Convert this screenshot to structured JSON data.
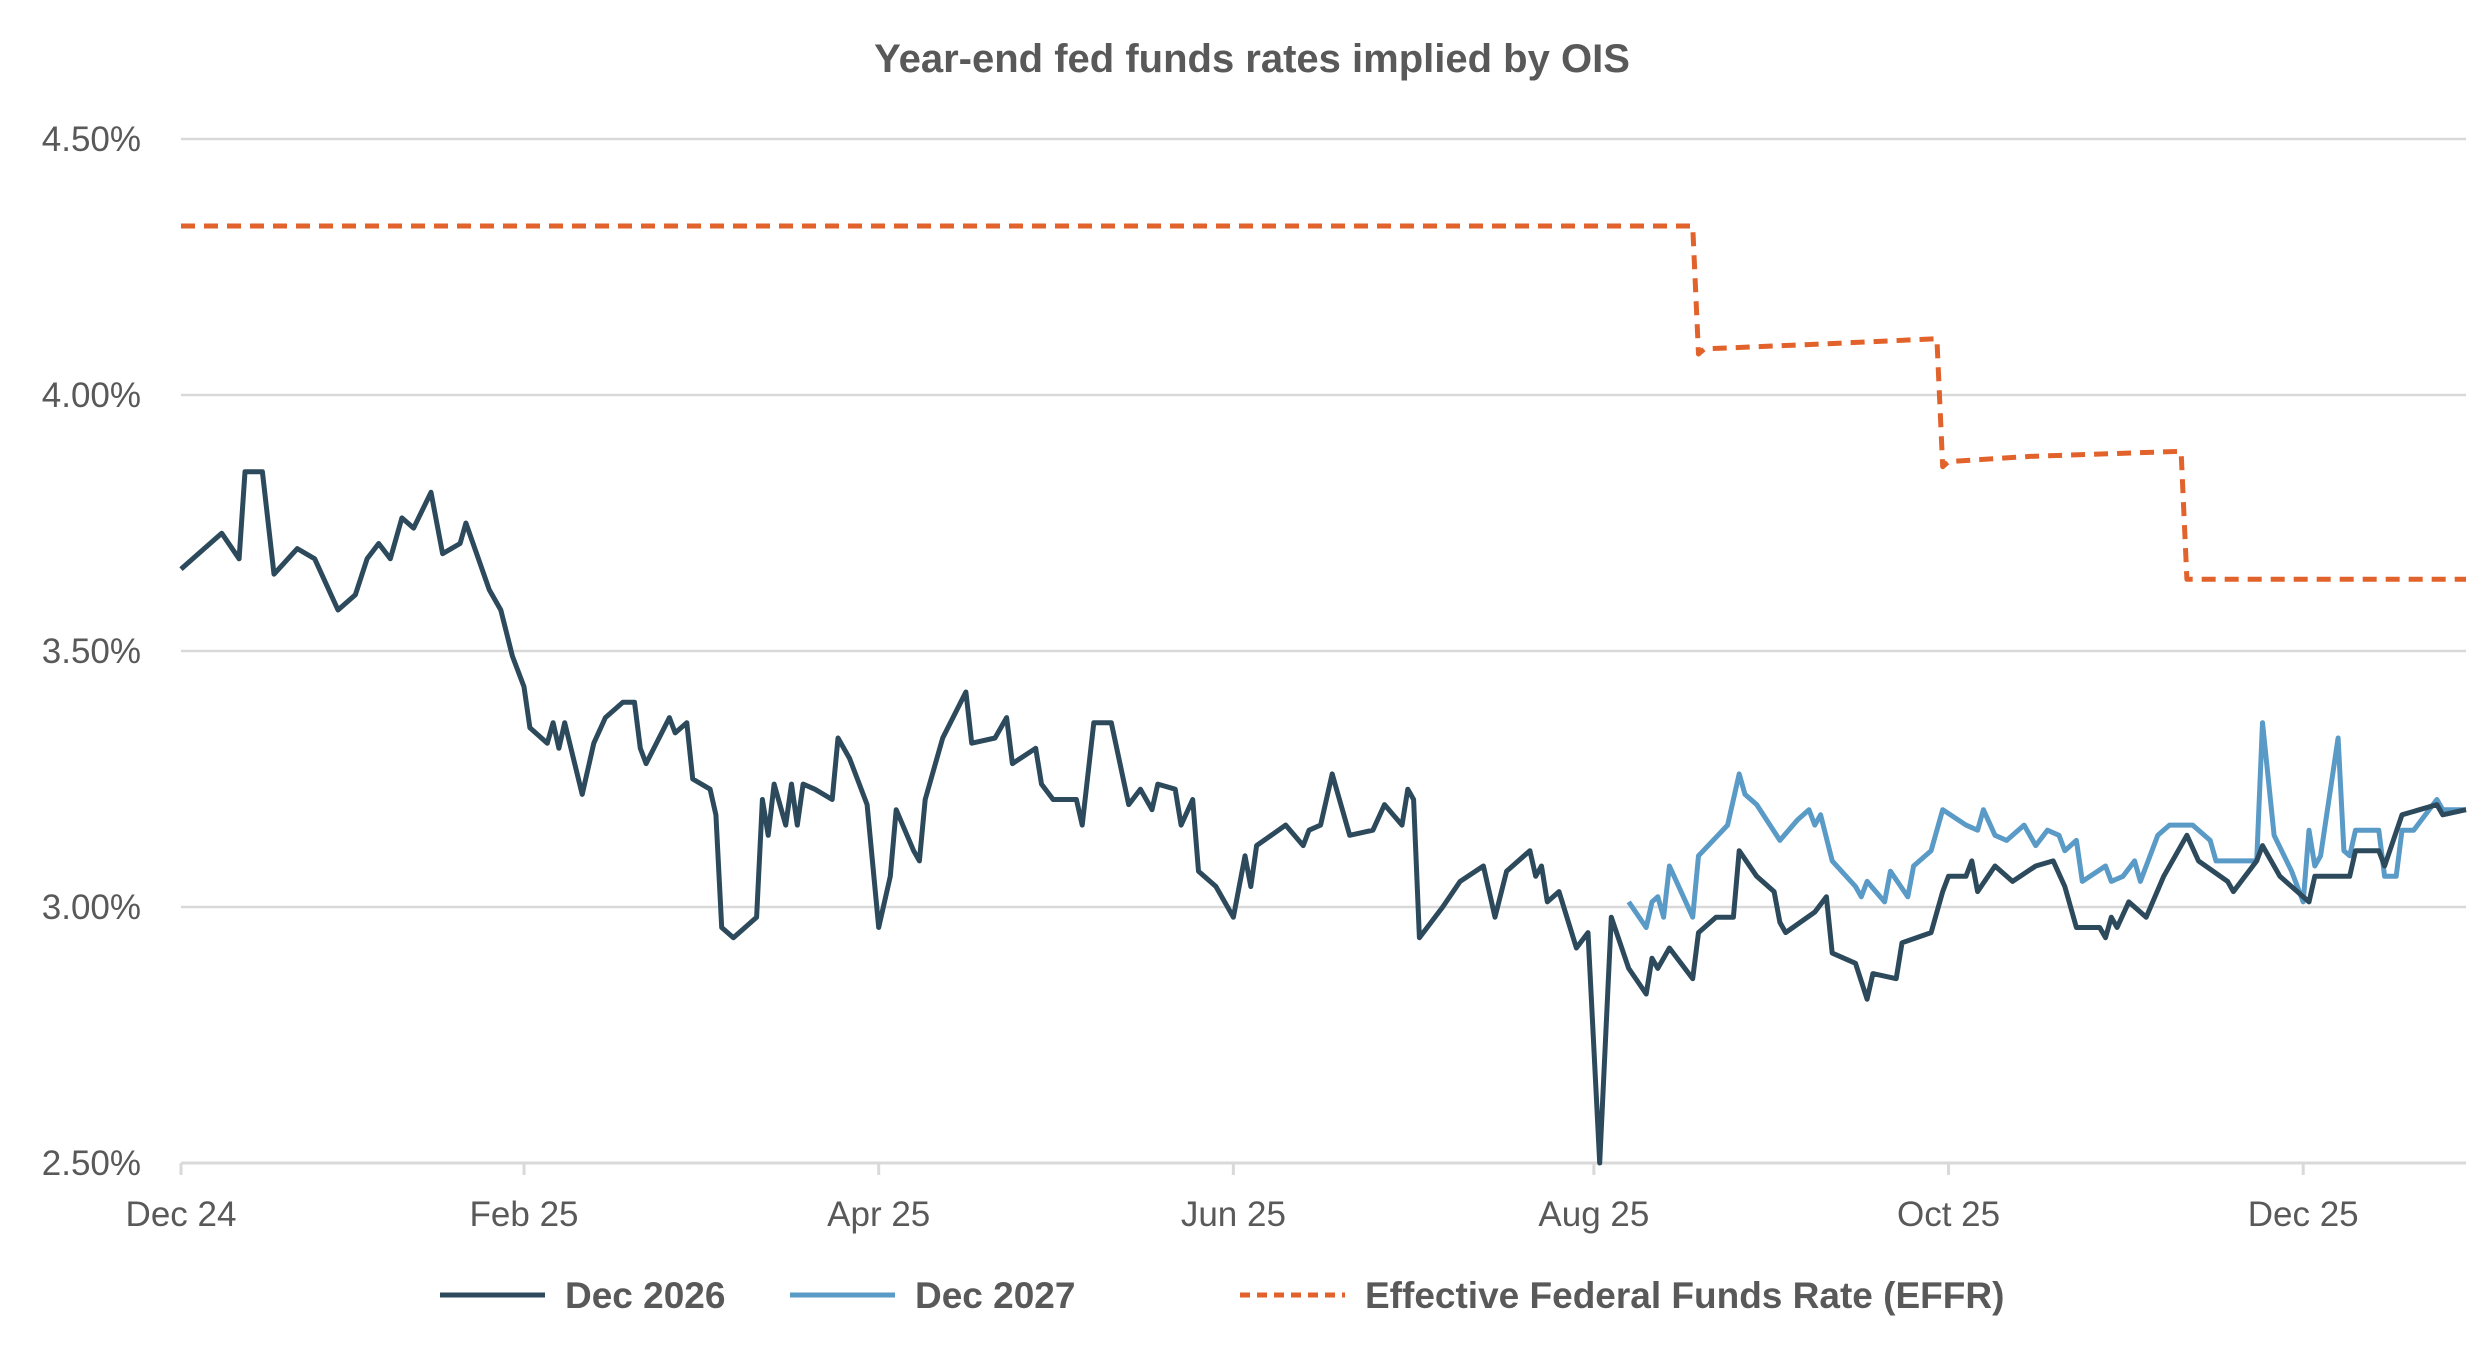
{
  "chart_data": {
    "type": "line",
    "title": "Year-end fed funds rates implied by OIS",
    "xlabel": "",
    "ylabel": "",
    "ylim": [
      2.5,
      4.5
    ],
    "y_ticks": [
      "2.50%",
      "3.00%",
      "3.50%",
      "4.00%",
      "4.50%"
    ],
    "y_tick_values": [
      2.5,
      3.0,
      3.5,
      4.0,
      4.5
    ],
    "x_ticks": [
      "Dec 24",
      "Feb 25",
      "Apr 25",
      "Jun 25",
      "Aug 25",
      "Oct 25",
      "Dec 25"
    ],
    "x_tick_dates": [
      "2024-12-31",
      "2025-02-28",
      "2025-04-30",
      "2025-06-30",
      "2025-08-31",
      "2025-10-31",
      "2025-12-31"
    ],
    "xlim": [
      "2024-12-31",
      "2026-01-28"
    ],
    "grid": "horizontal",
    "legend_position": "bottom",
    "series": [
      {
        "name": "Dec 2026",
        "color": "#2c4a5c",
        "style": "solid",
        "points": [
          [
            "2024-12-31",
            3.66
          ],
          [
            "2025-01-03",
            3.69
          ],
          [
            "2025-01-07",
            3.73
          ],
          [
            "2025-01-10",
            3.68
          ],
          [
            "2025-01-11",
            3.85
          ],
          [
            "2025-01-14",
            3.85
          ],
          [
            "2025-01-16",
            3.65
          ],
          [
            "2025-01-20",
            3.7
          ],
          [
            "2025-01-23",
            3.68
          ],
          [
            "2025-01-27",
            3.58
          ],
          [
            "2025-01-30",
            3.61
          ],
          [
            "2025-02-01",
            3.68
          ],
          [
            "2025-02-03",
            3.71
          ],
          [
            "2025-02-05",
            3.68
          ],
          [
            "2025-02-07",
            3.76
          ],
          [
            "2025-02-09",
            3.74
          ],
          [
            "2025-02-12",
            3.81
          ],
          [
            "2025-02-14",
            3.69
          ],
          [
            "2025-02-17",
            3.71
          ],
          [
            "2025-02-18",
            3.75
          ],
          [
            "2025-02-22",
            3.62
          ],
          [
            "2025-02-24",
            3.58
          ],
          [
            "2025-02-26",
            3.49
          ],
          [
            "2025-02-28",
            3.43
          ],
          [
            "2025-03-01",
            3.35
          ],
          [
            "2025-03-04",
            3.32
          ],
          [
            "2025-03-05",
            3.36
          ],
          [
            "2025-03-06",
            3.31
          ],
          [
            "2025-03-07",
            3.36
          ],
          [
            "2025-03-10",
            3.22
          ],
          [
            "2025-03-12",
            3.32
          ],
          [
            "2025-03-14",
            3.37
          ],
          [
            "2025-03-17",
            3.4
          ],
          [
            "2025-03-19",
            3.4
          ],
          [
            "2025-03-20",
            3.31
          ],
          [
            "2025-03-21",
            3.28
          ],
          [
            "2025-03-25",
            3.37
          ],
          [
            "2025-03-26",
            3.34
          ],
          [
            "2025-03-28",
            3.36
          ],
          [
            "2025-03-29",
            3.25
          ],
          [
            "2025-04-01",
            3.23
          ],
          [
            "2025-04-02",
            3.18
          ],
          [
            "2025-04-03",
            2.96
          ],
          [
            "2025-04-05",
            2.94
          ],
          [
            "2025-04-09",
            2.98
          ],
          [
            "2025-04-10",
            3.21
          ],
          [
            "2025-04-11",
            3.14
          ],
          [
            "2025-04-12",
            3.24
          ],
          [
            "2025-04-14",
            3.16
          ],
          [
            "2025-04-15",
            3.24
          ],
          [
            "2025-04-16",
            3.16
          ],
          [
            "2025-04-17",
            3.24
          ],
          [
            "2025-04-19",
            3.23
          ],
          [
            "2025-04-22",
            3.21
          ],
          [
            "2025-04-23",
            3.33
          ],
          [
            "2025-04-25",
            3.29
          ],
          [
            "2025-04-28",
            3.2
          ],
          [
            "2025-04-29",
            3.08
          ],
          [
            "2025-04-30",
            2.96
          ],
          [
            "2025-05-02",
            3.06
          ],
          [
            "2025-05-03",
            3.19
          ],
          [
            "2025-05-06",
            3.11
          ],
          [
            "2025-05-07",
            3.09
          ],
          [
            "2025-05-08",
            3.21
          ],
          [
            "2025-05-11",
            3.33
          ],
          [
            "2025-05-15",
            3.42
          ],
          [
            "2025-05-16",
            3.32
          ],
          [
            "2025-05-20",
            3.33
          ],
          [
            "2025-05-22",
            3.37
          ],
          [
            "2025-05-23",
            3.28
          ],
          [
            "2025-05-27",
            3.31
          ],
          [
            "2025-05-28",
            3.24
          ],
          [
            "2025-05-30",
            3.21
          ],
          [
            "2025-06-03",
            3.21
          ],
          [
            "2025-06-04",
            3.16
          ],
          [
            "2025-06-06",
            3.36
          ],
          [
            "2025-06-09",
            3.36
          ],
          [
            "2025-06-12",
            3.2
          ],
          [
            "2025-06-14",
            3.23
          ],
          [
            "2025-06-16",
            3.19
          ],
          [
            "2025-06-17",
            3.24
          ],
          [
            "2025-06-20",
            3.23
          ],
          [
            "2025-06-21",
            3.16
          ],
          [
            "2025-06-23",
            3.21
          ],
          [
            "2025-06-24",
            3.07
          ],
          [
            "2025-06-27",
            3.04
          ],
          [
            "2025-06-30",
            2.98
          ],
          [
            "2025-07-02",
            3.1
          ],
          [
            "2025-07-03",
            3.04
          ],
          [
            "2025-07-04",
            3.12
          ],
          [
            "2025-07-09",
            3.16
          ],
          [
            "2025-07-12",
            3.12
          ],
          [
            "2025-07-13",
            3.15
          ],
          [
            "2025-07-15",
            3.16
          ],
          [
            "2025-07-17",
            3.26
          ],
          [
            "2025-07-18",
            3.22
          ],
          [
            "2025-07-20",
            3.14
          ],
          [
            "2025-07-24",
            3.15
          ],
          [
            "2025-07-26",
            3.2
          ],
          [
            "2025-07-29",
            3.16
          ],
          [
            "2025-07-30",
            3.23
          ],
          [
            "2025-07-31",
            3.21
          ],
          [
            "2025-08-01",
            2.94
          ],
          [
            "2025-08-05",
            3.0
          ],
          [
            "2025-08-08",
            3.05
          ],
          [
            "2025-08-12",
            3.08
          ],
          [
            "2025-08-14",
            2.98
          ],
          [
            "2025-08-16",
            3.07
          ],
          [
            "2025-08-20",
            3.11
          ],
          [
            "2025-08-21",
            3.06
          ],
          [
            "2025-08-22",
            3.08
          ],
          [
            "2025-08-23",
            3.01
          ],
          [
            "2025-08-25",
            3.03
          ],
          [
            "2025-08-28",
            2.92
          ],
          [
            "2025-08-30",
            2.95
          ],
          [
            "2025-09-01",
            2.5
          ],
          [
            "2025-09-03",
            2.98
          ],
          [
            "2025-09-06",
            2.88
          ],
          [
            "2025-09-09",
            2.83
          ],
          [
            "2025-09-10",
            2.9
          ],
          [
            "2025-09-11",
            2.88
          ],
          [
            "2025-09-13",
            2.92
          ],
          [
            "2025-09-17",
            2.86
          ],
          [
            "2025-09-18",
            2.95
          ],
          [
            "2025-09-21",
            2.98
          ],
          [
            "2025-09-24",
            2.98
          ],
          [
            "2025-09-25",
            3.11
          ],
          [
            "2025-09-28",
            3.06
          ],
          [
            "2025-10-01",
            3.03
          ],
          [
            "2025-10-02",
            2.97
          ],
          [
            "2025-10-03",
            2.95
          ],
          [
            "2025-10-08",
            2.99
          ],
          [
            "2025-10-10",
            3.02
          ],
          [
            "2025-10-11",
            2.91
          ],
          [
            "2025-10-15",
            2.89
          ],
          [
            "2025-10-17",
            2.82
          ],
          [
            "2025-10-18",
            2.87
          ],
          [
            "2025-10-22",
            2.86
          ],
          [
            "2025-10-23",
            2.93
          ],
          [
            "2025-10-28",
            2.95
          ],
          [
            "2025-10-30",
            3.03
          ],
          [
            "2025-10-31",
            3.06
          ],
          [
            "2025-11-03",
            3.06
          ],
          [
            "2025-11-04",
            3.09
          ],
          [
            "2025-11-05",
            3.03
          ],
          [
            "2025-11-08",
            3.08
          ],
          [
            "2025-11-11",
            3.05
          ],
          [
            "2025-11-15",
            3.08
          ],
          [
            "2025-11-18",
            3.09
          ],
          [
            "2025-11-20",
            3.04
          ],
          [
            "2025-11-22",
            2.96
          ],
          [
            "2025-11-26",
            2.96
          ],
          [
            "2025-11-27",
            2.94
          ],
          [
            "2025-11-28",
            2.98
          ],
          [
            "2025-11-29",
            2.96
          ],
          [
            "2025-12-01",
            3.01
          ],
          [
            "2025-12-04",
            2.98
          ],
          [
            "2025-12-07",
            3.06
          ],
          [
            "2025-12-11",
            3.14
          ],
          [
            "2025-12-13",
            3.09
          ],
          [
            "2025-12-18",
            3.05
          ],
          [
            "2025-12-19",
            3.03
          ],
          [
            "2025-12-23",
            3.09
          ],
          [
            "2025-12-24",
            3.12
          ],
          [
            "2025-12-27",
            3.06
          ],
          [
            "2026-01-01",
            3.01
          ],
          [
            "2026-01-02",
            3.06
          ],
          [
            "2026-01-05",
            3.06
          ],
          [
            "2026-01-08",
            3.06
          ],
          [
            "2026-01-09",
            3.11
          ],
          [
            "2026-01-13",
            3.11
          ],
          [
            "2026-01-14",
            3.08
          ],
          [
            "2026-01-17",
            3.18
          ],
          [
            "2026-01-20",
            3.19
          ],
          [
            "2026-01-23",
            3.2
          ],
          [
            "2026-01-24",
            3.18
          ],
          [
            "2026-01-28",
            3.19
          ]
        ]
      },
      {
        "name": "Dec 2027",
        "color": "#5a9ac6",
        "style": "solid",
        "points": [
          [
            "2025-09-06",
            3.01
          ],
          [
            "2025-09-09",
            2.96
          ],
          [
            "2025-09-10",
            3.01
          ],
          [
            "2025-09-11",
            3.02
          ],
          [
            "2025-09-12",
            2.98
          ],
          [
            "2025-09-13",
            3.08
          ],
          [
            "2025-09-17",
            2.98
          ],
          [
            "2025-09-18",
            3.1
          ],
          [
            "2025-09-23",
            3.16
          ],
          [
            "2025-09-25",
            3.26
          ],
          [
            "2025-09-26",
            3.22
          ],
          [
            "2025-09-28",
            3.2
          ],
          [
            "2025-10-02",
            3.13
          ],
          [
            "2025-10-05",
            3.17
          ],
          [
            "2025-10-07",
            3.19
          ],
          [
            "2025-10-08",
            3.16
          ],
          [
            "2025-10-09",
            3.18
          ],
          [
            "2025-10-11",
            3.09
          ],
          [
            "2025-10-15",
            3.04
          ],
          [
            "2025-10-16",
            3.02
          ],
          [
            "2025-10-17",
            3.05
          ],
          [
            "2025-10-20",
            3.01
          ],
          [
            "2025-10-21",
            3.07
          ],
          [
            "2025-10-24",
            3.02
          ],
          [
            "2025-10-25",
            3.08
          ],
          [
            "2025-10-28",
            3.11
          ],
          [
            "2025-10-30",
            3.19
          ],
          [
            "2025-11-03",
            3.16
          ],
          [
            "2025-11-05",
            3.15
          ],
          [
            "2025-11-06",
            3.19
          ],
          [
            "2025-11-08",
            3.14
          ],
          [
            "2025-11-10",
            3.13
          ],
          [
            "2025-11-13",
            3.16
          ],
          [
            "2025-11-15",
            3.12
          ],
          [
            "2025-11-17",
            3.15
          ],
          [
            "2025-11-19",
            3.14
          ],
          [
            "2025-11-20",
            3.11
          ],
          [
            "2025-11-22",
            3.13
          ],
          [
            "2025-11-23",
            3.05
          ],
          [
            "2025-11-27",
            3.08
          ],
          [
            "2025-11-28",
            3.05
          ],
          [
            "2025-11-30",
            3.06
          ],
          [
            "2025-12-02",
            3.09
          ],
          [
            "2025-12-03",
            3.05
          ],
          [
            "2025-12-06",
            3.14
          ],
          [
            "2025-12-08",
            3.16
          ],
          [
            "2025-12-12",
            3.16
          ],
          [
            "2025-12-15",
            3.13
          ],
          [
            "2025-12-16",
            3.09
          ],
          [
            "2025-12-20",
            3.09
          ],
          [
            "2025-12-23",
            3.09
          ],
          [
            "2025-12-24",
            3.36
          ],
          [
            "2025-12-26",
            3.14
          ],
          [
            "2025-12-29",
            3.07
          ],
          [
            "2025-12-31",
            3.01
          ],
          [
            "2026-01-01",
            3.15
          ],
          [
            "2026-01-02",
            3.08
          ],
          [
            "2026-01-03",
            3.1
          ],
          [
            "2026-01-06",
            3.33
          ],
          [
            "2026-01-07",
            3.11
          ],
          [
            "2026-01-08",
            3.1
          ],
          [
            "2026-01-09",
            3.15
          ],
          [
            "2026-01-13",
            3.15
          ],
          [
            "2026-01-14",
            3.06
          ],
          [
            "2026-01-16",
            3.06
          ],
          [
            "2026-01-17",
            3.15
          ],
          [
            "2026-01-19",
            3.15
          ],
          [
            "2026-01-23",
            3.21
          ],
          [
            "2026-01-24",
            3.19
          ],
          [
            "2026-01-28",
            3.19
          ]
        ]
      },
      {
        "name": "Effective Federal Funds Rate (EFFR)",
        "color": "#e2622b",
        "style": "dashed",
        "points": [
          [
            "2024-12-31",
            4.33
          ],
          [
            "2025-09-17",
            4.33
          ],
          [
            "2025-09-18",
            4.08
          ],
          [
            "2025-09-19",
            4.09
          ],
          [
            "2025-10-10",
            4.1
          ],
          [
            "2025-10-29",
            4.11
          ],
          [
            "2025-10-30",
            3.86
          ],
          [
            "2025-10-31",
            3.87
          ],
          [
            "2025-11-14",
            3.88
          ],
          [
            "2025-12-10",
            3.89
          ],
          [
            "2025-12-11",
            3.64
          ],
          [
            "2026-01-28",
            3.64
          ]
        ]
      }
    ]
  }
}
